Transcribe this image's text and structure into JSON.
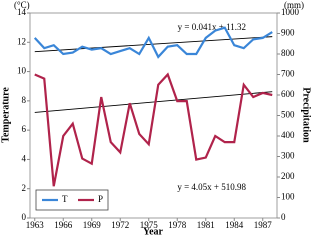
{
  "chart_data": {
    "type": "line",
    "y_unit": "(°C)",
    "y2_unit": "(mm)",
    "xlabel": "Year",
    "ylabel": "Temperature",
    "y2label": "Precipitation",
    "x": [
      1963,
      1964,
      1965,
      1966,
      1967,
      1968,
      1969,
      1970,
      1971,
      1972,
      1973,
      1974,
      1975,
      1976,
      1977,
      1978,
      1979,
      1980,
      1981,
      1982,
      1983,
      1984,
      1985,
      1986,
      1987,
      1988
    ],
    "xlim": [
      1962.5,
      1988.5
    ],
    "xticks": [
      1963,
      1966,
      1969,
      1972,
      1975,
      1978,
      1981,
      1984,
      1987
    ],
    "ylim": [
      0,
      14
    ],
    "yticks": [
      0,
      2,
      4,
      6,
      8,
      10,
      12,
      14
    ],
    "y2lim": [
      0,
      1000
    ],
    "y2ticks": [
      0,
      100,
      200,
      300,
      400,
      500,
      600,
      700,
      800,
      900,
      1000
    ],
    "legend": "lower left",
    "series": [
      {
        "name": "T",
        "color": "#3a86d8",
        "values": [
          12.3,
          11.6,
          11.8,
          11.2,
          11.3,
          11.7,
          11.5,
          11.6,
          11.2,
          11.4,
          11.6,
          11.2,
          12.3,
          11.0,
          11.7,
          11.8,
          11.2,
          11.2,
          12.3,
          12.8,
          13.0,
          11.8,
          11.6,
          12.2,
          12.3,
          12.7
        ]
      },
      {
        "name": "P",
        "color": "#b0234b",
        "axis": "y2",
        "values": [
          700,
          680,
          155,
          400,
          460,
          290,
          265,
          590,
          370,
          320,
          560,
          410,
          360,
          650,
          700,
          570,
          570,
          285,
          295,
          400,
          370,
          370,
          650,
          590,
          610,
          600
        ]
      }
    ],
    "trendlines": [
      {
        "label": "y = 0.041x + 11.32",
        "slope": 0.041,
        "intercept": 11.32
      },
      {
        "label": "y = 4.05x + 510.98",
        "slope": 4.05,
        "intercept": 510.98,
        "axis": "y2"
      }
    ]
  }
}
